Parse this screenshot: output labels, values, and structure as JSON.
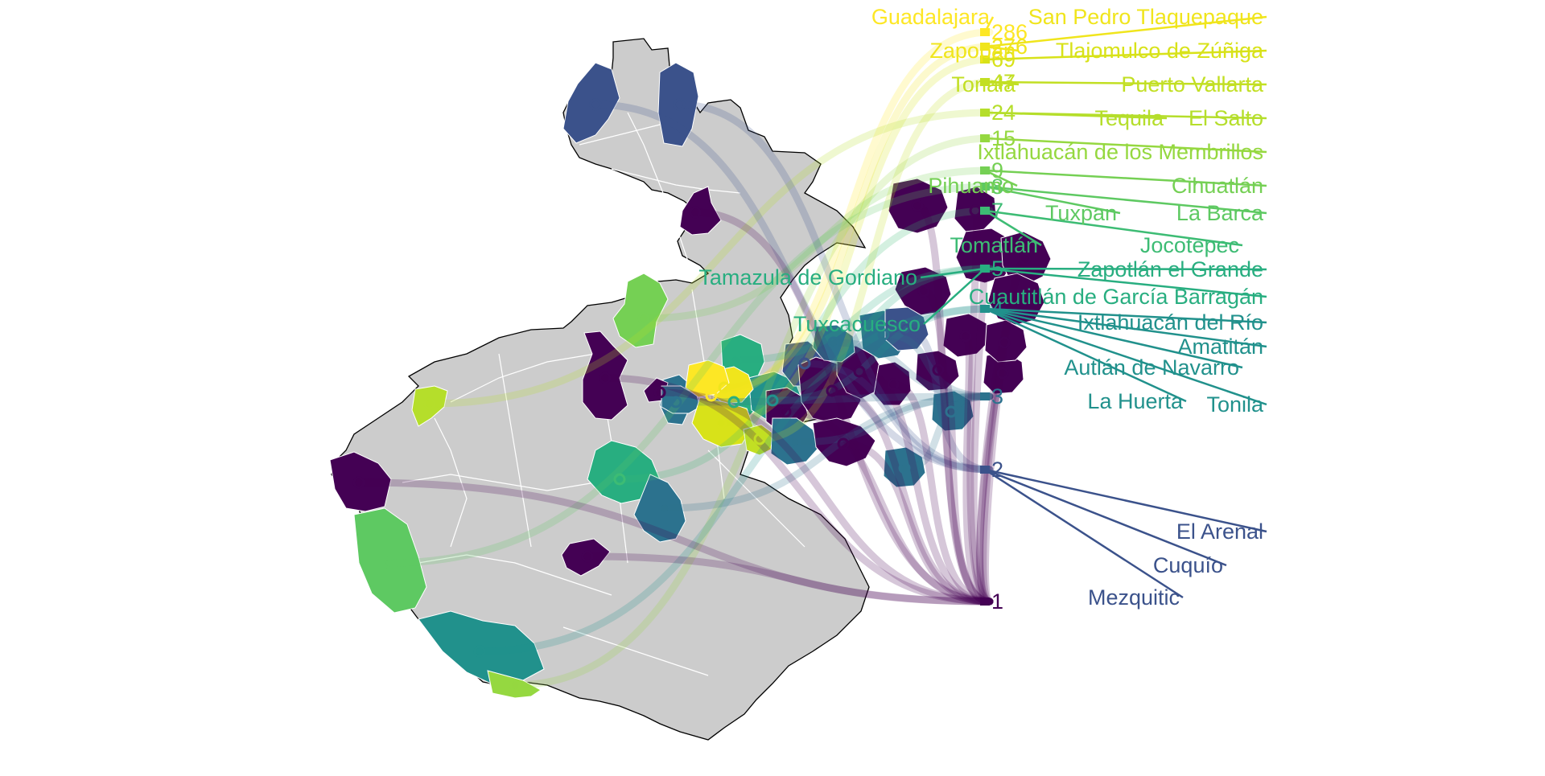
{
  "map": {
    "region": "Jalisco",
    "base_fill": "#cccccc",
    "outline": "#000000",
    "inner_border": "#ffffff"
  },
  "colors": {
    "1": "#440154",
    "2": "#3b528b",
    "3": "#2c728e",
    "4": "#21918c",
    "5": "#28ae80",
    "7": "#3dbc74",
    "8": "#5ec962",
    "9": "#75d054",
    "15": "#95d840",
    "24": "#b5de2b",
    "47": "#c2df23",
    "69": "#d8e219",
    "276": "#f0e51c",
    "286": "#fde725"
  },
  "values": [
    {
      "value": "286",
      "color": "#fde725"
    },
    {
      "value": "276",
      "color": "#f0e51c"
    },
    {
      "value": "69",
      "color": "#d8e219"
    },
    {
      "value": "47",
      "color": "#c2df23"
    },
    {
      "value": "24",
      "color": "#b5de2b"
    },
    {
      "value": "15",
      "color": "#95d840"
    },
    {
      "value": "9",
      "color": "#75d054"
    },
    {
      "value": "8",
      "color": "#5ec962"
    },
    {
      "value": "7",
      "color": "#3dbc74"
    },
    {
      "value": "5",
      "color": "#28ae80"
    },
    {
      "value": "4",
      "color": "#21918c"
    },
    {
      "value": "3",
      "color": "#2c728e"
    },
    {
      "value": "2",
      "color": "#3b528b"
    },
    {
      "value": "1",
      "color": "#440154"
    }
  ],
  "labels": [
    {
      "name": "Guadalajara",
      "value": "286"
    },
    {
      "name": "San Pedro Tlaquepaque",
      "value": "276"
    },
    {
      "name": "Zapopan",
      "value": "276"
    },
    {
      "name": "Tlajomulco de Zúñiga",
      "value": "69"
    },
    {
      "name": "Tonalá",
      "value": "47"
    },
    {
      "name": "Puerto Vallarta",
      "value": "47"
    },
    {
      "name": "Tequila",
      "value": "24"
    },
    {
      "name": "El Salto",
      "value": "24"
    },
    {
      "name": "Ixtlahuacán de los Membrillos",
      "value": "15"
    },
    {
      "name": "Pihuamo",
      "value": "9"
    },
    {
      "name": "Cihuatlán",
      "value": "9"
    },
    {
      "name": "Tuxpan",
      "value": "8"
    },
    {
      "name": "La Barca",
      "value": "8"
    },
    {
      "name": "Tomatlán",
      "value": "7"
    },
    {
      "name": "Jocotepec",
      "value": "7"
    },
    {
      "name": "Zapotlán el Grande",
      "value": "5"
    },
    {
      "name": "Tamazula de Gordiano",
      "value": "5"
    },
    {
      "name": "Cuautitlán de García Barragán",
      "value": "5"
    },
    {
      "name": "Tuxcacuesco",
      "value": "5"
    },
    {
      "name": "Ixtlahuacán del Río",
      "value": "4"
    },
    {
      "name": "Amatitán",
      "value": "4"
    },
    {
      "name": "Autlán de Navarro",
      "value": "4"
    },
    {
      "name": "La Huerta",
      "value": "4"
    },
    {
      "name": "Tonila",
      "value": "4"
    },
    {
      "name": "El Arenal",
      "value": "2"
    },
    {
      "name": "Cuquío",
      "value": "2"
    },
    {
      "name": "Mezquitic",
      "value": "2"
    }
  ]
}
